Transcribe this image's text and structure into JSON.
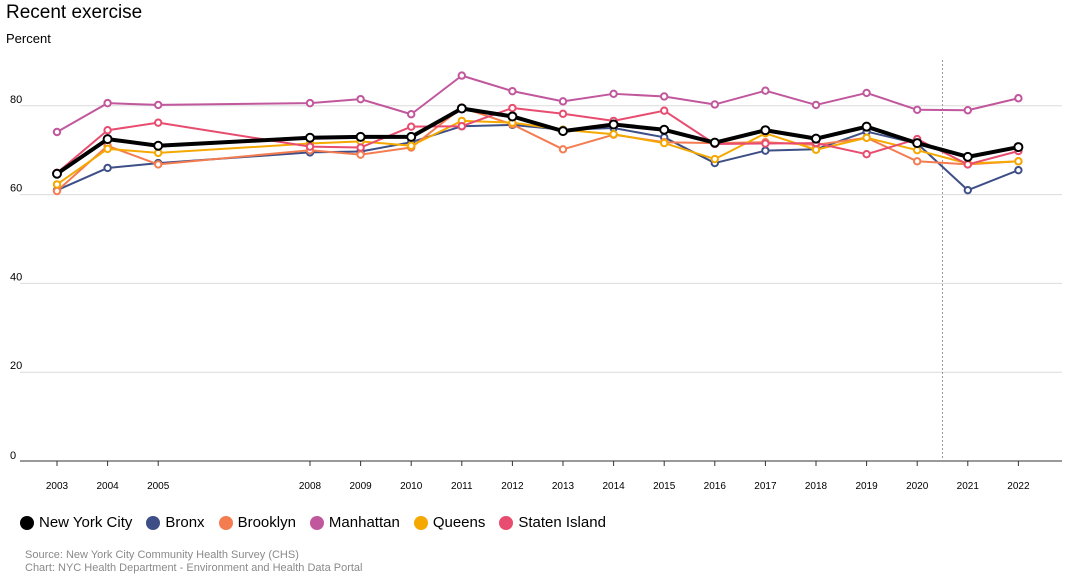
{
  "chart_data": {
    "type": "line",
    "title": "Recent exercise",
    "ylabel": "Percent",
    "xlabel": "",
    "x": [
      2003,
      2004,
      2005,
      2008,
      2009,
      2010,
      2011,
      2012,
      2013,
      2014,
      2015,
      2016,
      2017,
      2018,
      2019,
      2020,
      2021,
      2022
    ],
    "x_tick_labels": [
      "2003",
      "2004",
      "2005",
      "2008",
      "2009",
      "2010",
      "2011",
      "2012",
      "2013",
      "2014",
      "2015",
      "2016",
      "2017",
      "2018",
      "2019",
      "2020",
      "2021",
      "2022"
    ],
    "ylim": [
      0,
      90
    ],
    "y_ticks": [
      0,
      20,
      40,
      60,
      80
    ],
    "y_tick_labels": [
      "0",
      "20",
      "40",
      "60",
      "80"
    ],
    "grid": true,
    "legend_position": "bottom-left",
    "series": [
      {
        "name": "Bronx",
        "color": "#3d4f86",
        "values": [
          61.0,
          66.0,
          67.1,
          69.5,
          69.7,
          71.8,
          75.4,
          75.7,
          74.6,
          75.0,
          72.9,
          67.1,
          69.9,
          70.2,
          74.2,
          71.5,
          61.0,
          65.5
        ]
      },
      {
        "name": "Brooklyn",
        "color": "#f47c51",
        "values": [
          60.8,
          71.0,
          66.8,
          70.0,
          69.0,
          70.6,
          79.6,
          75.8,
          70.2,
          73.5,
          71.8,
          71.6,
          71.8,
          71.2,
          72.8,
          67.5,
          66.8,
          67.5
        ]
      },
      {
        "name": "Manhattan",
        "color": "#c1579c",
        "values": [
          74.1,
          80.6,
          80.2,
          80.6,
          81.5,
          78.1,
          86.8,
          83.3,
          81.0,
          82.7,
          82.1,
          80.3,
          83.4,
          80.2,
          82.9,
          79.1,
          79.0,
          81.7
        ]
      },
      {
        "name": "Queens",
        "color": "#f5a800",
        "values": [
          62.3,
          70.3,
          69.4,
          71.5,
          72.0,
          71.0,
          76.6,
          76.2,
          74.6,
          73.6,
          71.6,
          68.0,
          73.8,
          70.1,
          72.8,
          70.0,
          67.0,
          67.5
        ]
      },
      {
        "name": "Staten Island",
        "color": "#e84c6f",
        "values": [
          64.9,
          74.5,
          76.2,
          70.8,
          70.6,
          75.3,
          75.4,
          79.5,
          78.2,
          76.6,
          78.9,
          71.4,
          71.5,
          71.6,
          69.1,
          72.5,
          66.8,
          69.8
        ]
      },
      {
        "name": "New York City",
        "color": "#000000",
        "values": [
          64.7,
          72.5,
          71.0,
          72.8,
          73.0,
          73.0,
          79.4,
          77.6,
          74.3,
          75.8,
          74.6,
          71.7,
          74.5,
          72.6,
          75.3,
          71.6,
          68.5,
          70.7
        ]
      }
    ],
    "legend_order": [
      "New York City",
      "Bronx",
      "Brooklyn",
      "Manhattan",
      "Queens",
      "Staten Island"
    ],
    "annotation": {
      "type": "vertical-dashed-line",
      "between": [
        2020,
        2021
      ]
    }
  },
  "source": {
    "line1": "Source: New York City Community Health Survey (CHS)",
    "line2": "Chart: NYC Health Department - Environment and Health Data Portal"
  }
}
